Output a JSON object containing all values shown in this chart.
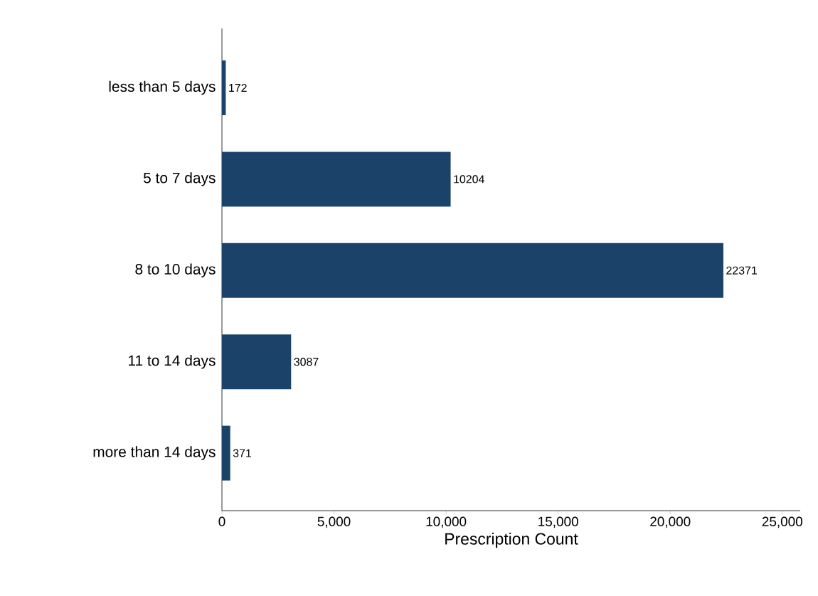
{
  "chart_data": {
    "type": "bar",
    "orientation": "horizontal",
    "xlabel": "Prescription Count",
    "categories": [
      "less than 5 days",
      "5 to 7 days",
      "8 to 10 days",
      "11 to 14 days",
      "more than 14 days"
    ],
    "values": [
      172,
      10204,
      22371,
      3087,
      371
    ],
    "color": "#1b4369",
    "xlim": [
      0,
      25800
    ],
    "xticks": [
      0,
      {
        "value": 5000,
        "label": "5,000"
      },
      {
        "value": 10000,
        "label": "10,000"
      },
      {
        "value": 15000,
        "label": "15,000"
      },
      {
        "value": 20000,
        "label": "20,000"
      },
      {
        "value": 25000,
        "label": "25,000"
      }
    ],
    "data_labels": true,
    "grid": false
  }
}
